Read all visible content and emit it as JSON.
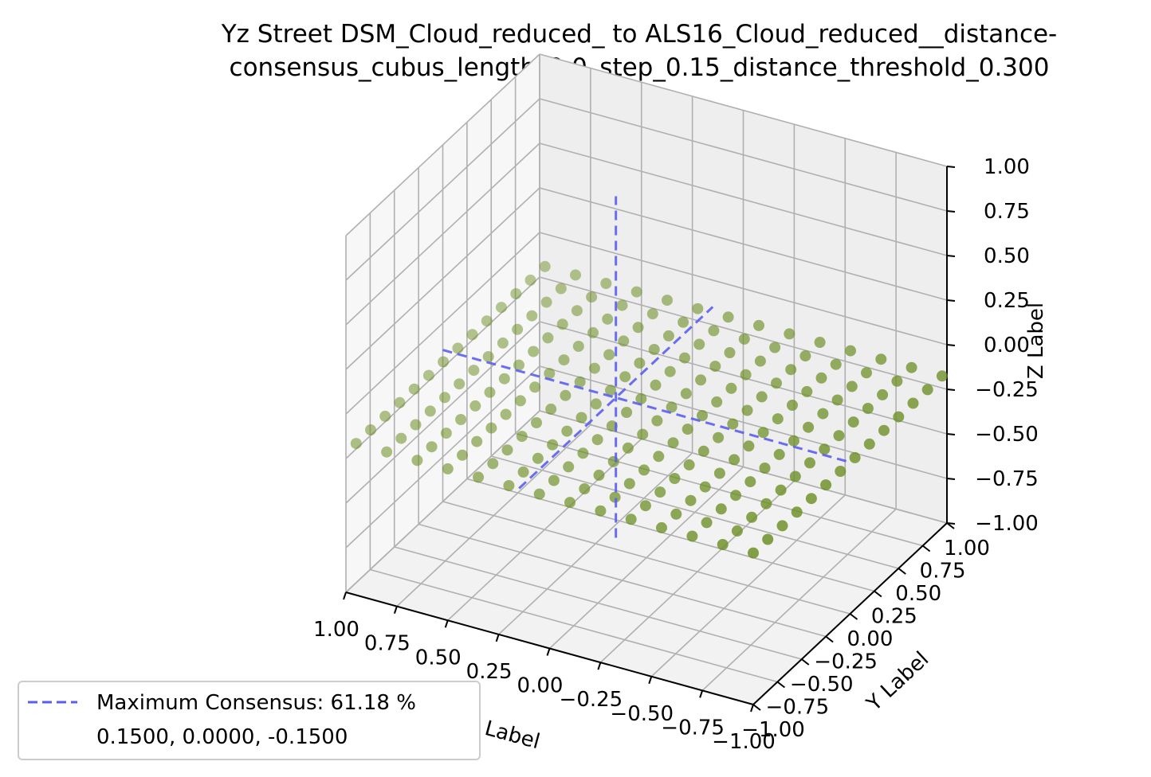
{
  "chart_data": {
    "type": "scatter",
    "projection": "3d",
    "title_lines": [
      "Yz Street DSM_Cloud_reduced_ to ALS16_Cloud_reduced__distance-",
      "consensus_cubus_length_2.0_step_0.15_distance_threshold_0.300"
    ],
    "xlabel": "X Label",
    "ylabel": "Y Label",
    "zlabel": "Z Label",
    "xlim": [
      -1.0,
      1.0
    ],
    "ylim": [
      -1.0,
      1.0
    ],
    "zlim": [
      -1.0,
      1.0
    ],
    "xticks": [
      "−1.00",
      "−0.75",
      "−0.50",
      "−0.25",
      "0.00",
      "0.25",
      "0.50",
      "0.75",
      "1.00"
    ],
    "yticks": [
      "−1.00",
      "−0.75",
      "−0.50",
      "−0.25",
      "0.00",
      "0.25",
      "0.50",
      "0.75",
      "1.00"
    ],
    "zticks": [
      "−1.00",
      "−0.75",
      "−0.50",
      "−0.25",
      "0.00",
      "0.25",
      "0.50",
      "0.75",
      "1.00"
    ],
    "tick_values": [
      -1.0,
      -0.75,
      -0.5,
      -0.25,
      0.0,
      0.25,
      0.5,
      0.75,
      1.0
    ],
    "grid": true,
    "points": {
      "color": "#6b8e23",
      "x_values": [
        -1.0,
        -0.85,
        -0.7,
        -0.55,
        -0.4,
        -0.25,
        -0.1,
        0.05,
        0.2,
        0.35,
        0.5,
        0.65,
        0.8,
        0.95
      ],
      "y_values": [
        -1.0,
        -0.85,
        -0.7,
        -0.55,
        -0.4,
        -0.25,
        -0.1,
        0.05,
        0.2,
        0.35,
        0.5,
        0.65,
        0.8,
        0.95
      ],
      "z_value": -0.15
    },
    "consensus_lines": {
      "color": "#5a5ef0",
      "center": [
        0.15,
        0.0,
        -0.15
      ]
    },
    "legend": {
      "placement": "lower-left",
      "entries": [
        "Maximum Consensus: 61.18 %",
        "0.1500, 0.0000, -0.1500"
      ]
    }
  }
}
